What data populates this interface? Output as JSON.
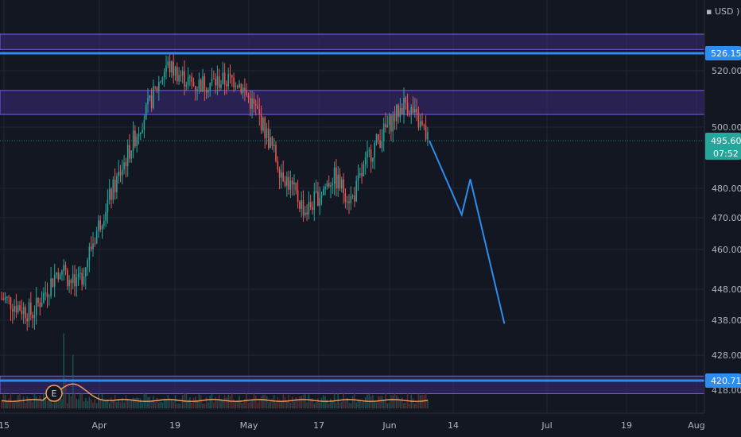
{
  "currency_label": "USD",
  "colors": {
    "background": "#131722",
    "grid": "#1f2433",
    "up": "#26a69a",
    "down": "#ef5350",
    "zone_fill": "#3b2a7a",
    "zone_border": "#7b5cff",
    "level_line": "#2d8cf0",
    "projection": "#2d8cf0",
    "price_badge": "#26a69a"
  },
  "price_axis": {
    "ticks": [
      "520.00",
      "500.00",
      "480.00",
      "470.00",
      "460.00",
      "448.00",
      "438.00",
      "428.00",
      "418.00"
    ],
    "level_labels": [
      "526.15",
      "420.71"
    ],
    "last_price": "495.60",
    "countdown": "07:52"
  },
  "time_axis": {
    "labels": [
      "15",
      "Apr",
      "19",
      "May",
      "17",
      "Jun",
      "14",
      "Jul",
      "19",
      "Aug"
    ]
  },
  "earnings_marker": "E",
  "chart_data": {
    "type": "candlestick",
    "title": "",
    "xlabel": "",
    "ylabel": "",
    "y_unit": "USD",
    "y_axis_ticks": [
      520,
      500,
      480,
      470,
      460,
      448,
      438,
      428,
      418
    ],
    "x_axis_labels": [
      "15",
      "Apr",
      "19",
      "May",
      "17",
      "Jun",
      "14",
      "Jul",
      "19",
      "Aug"
    ],
    "last_price": 495.6,
    "horizontal_levels": [
      526.15,
      420.71
    ],
    "zones": [
      {
        "from": 527.5,
        "to": 533.0
      },
      {
        "from": 504.5,
        "to": 513.0
      },
      {
        "from": 417.0,
        "to": 422.0
      }
    ],
    "price_path": [
      {
        "date": "2024-03-15",
        "price": 445
      },
      {
        "date": "2024-03-20",
        "price": 440
      },
      {
        "date": "2024-03-25",
        "price": 455
      },
      {
        "date": "2024-03-28",
        "price": 448
      },
      {
        "date": "2024-04-02",
        "price": 472
      },
      {
        "date": "2024-04-08",
        "price": 492
      },
      {
        "date": "2024-04-12",
        "price": 505
      },
      {
        "date": "2024-04-17",
        "price": 522
      },
      {
        "date": "2024-04-22",
        "price": 515
      },
      {
        "date": "2024-04-29",
        "price": 517
      },
      {
        "date": "2024-05-03",
        "price": 505
      },
      {
        "date": "2024-05-08",
        "price": 487
      },
      {
        "date": "2024-05-14",
        "price": 472
      },
      {
        "date": "2024-05-20",
        "price": 484
      },
      {
        "date": "2024-05-24",
        "price": 476
      },
      {
        "date": "2024-05-28",
        "price": 492
      },
      {
        "date": "2024-06-03",
        "price": 509
      },
      {
        "date": "2024-06-06",
        "price": 495.6
      }
    ],
    "projection": [
      {
        "date": "2024-06-06",
        "price": 495.6
      },
      {
        "date": "2024-06-11",
        "price": 471
      },
      {
        "date": "2024-06-13",
        "price": 483
      },
      {
        "date": "2024-06-21",
        "price": 437
      }
    ]
  }
}
